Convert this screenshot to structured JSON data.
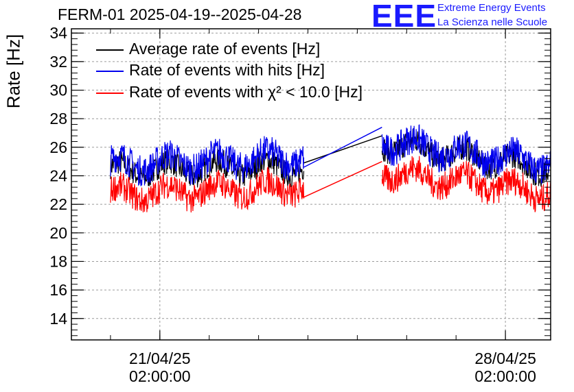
{
  "header": {
    "title": "FERM-01 2025-04-19--2025-04-28",
    "logo_letters": "EEE",
    "logo_line1": "Extreme Energy Events",
    "logo_line2": "La Scienza nelle Scuole"
  },
  "colors": {
    "average": "#000000",
    "hits": "#0000ee",
    "chi2": "#ff0000",
    "logo": "#1a1aff"
  },
  "chart_data": {
    "type": "line",
    "ylabel": "Rate [Hz]",
    "ylim": [
      12.5,
      34.3
    ],
    "yticks": [
      "14",
      "16",
      "18",
      "20",
      "22",
      "24",
      "26",
      "28",
      "30",
      "32",
      "34"
    ],
    "xlim": [
      "2025-04-19T07:00",
      "2025-04-29T00:00"
    ],
    "xticks": [
      {
        "date": "21/04/25",
        "time": "02:00:00",
        "at": "2025-04-21T02:00"
      },
      {
        "date": "28/04/25",
        "time": "02:00:00",
        "at": "2025-04-28T02:00"
      }
    ],
    "grid": true,
    "legend_position": "top-left",
    "series": [
      {
        "name": "Average rate of events [Hz]",
        "color": "#000000",
        "segments": [
          {
            "start": "2025-04-20T02:00",
            "end": "2025-04-24T00:00",
            "base_start": 24.4,
            "base_end": 24.6,
            "noise": 0.9
          },
          {
            "start": "2025-04-25T14:00",
            "end": "2025-04-29T00:00",
            "base_start": 26.3,
            "base_end": 24.5,
            "noise": 0.9
          }
        ],
        "gap_line": [
          [
            "2025-04-24T00:00",
            24.9
          ],
          [
            "2025-04-25T14:00",
            26.8
          ]
        ]
      },
      {
        "name": "Rate of events with hits [Hz]",
        "color": "#0000ee",
        "segments": [
          {
            "start": "2025-04-20T02:00",
            "end": "2025-04-24T00:00",
            "base_start": 24.8,
            "base_end": 25.3,
            "noise": 1.1
          },
          {
            "start": "2025-04-25T14:00",
            "end": "2025-04-29T00:00",
            "base_start": 26.4,
            "base_end": 24.8,
            "noise": 1.1
          }
        ],
        "gap_line": [
          [
            "2025-04-24T00:00",
            24.6
          ],
          [
            "2025-04-25T14:00",
            27.4
          ]
        ]
      },
      {
        "name": "Rate of events with χ² < 10.0 [Hz]",
        "color": "#ff0000",
        "segments": [
          {
            "start": "2025-04-20T02:00",
            "end": "2025-04-24T00:00",
            "base_start": 22.7,
            "base_end": 23.2,
            "noise": 1.0
          },
          {
            "start": "2025-04-25T14:00",
            "end": "2025-04-29T00:00",
            "base_start": 24.3,
            "base_end": 22.8,
            "noise": 1.0
          }
        ],
        "gap_line": [
          [
            "2025-04-24T00:00",
            22.5
          ],
          [
            "2025-04-25T14:00",
            25.0
          ]
        ]
      }
    ]
  }
}
